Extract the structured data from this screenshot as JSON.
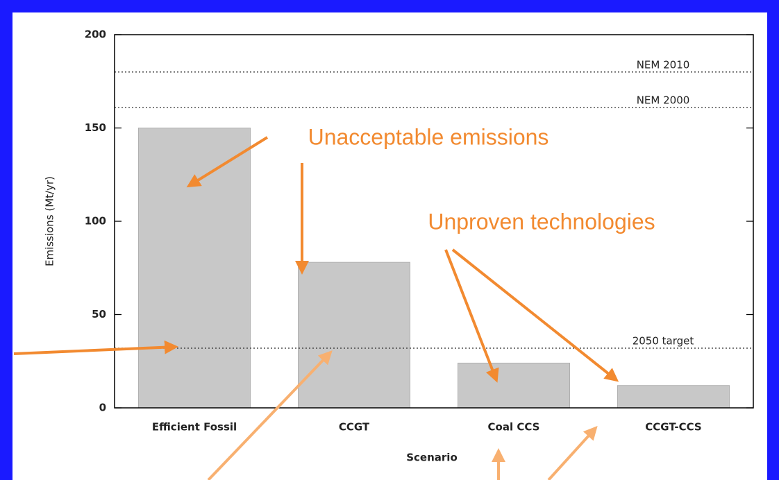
{
  "chart_data": {
    "type": "bar",
    "categories": [
      "Efficient Fossil",
      "CCGT",
      "Coal CCS",
      "CCGT-CCS"
    ],
    "values": [
      150,
      78,
      24,
      12
    ],
    "color": "#c8c8c8",
    "ylim": [
      0,
      200
    ],
    "yticks": [
      0,
      50,
      100,
      150,
      200
    ],
    "ylabel": "Emissions (Mt/yr)",
    "xlabel": "Scenario",
    "reference_lines": [
      {
        "label": "NEM 2010",
        "value": 180
      },
      {
        "label": "NEM 2000",
        "value": 161
      },
      {
        "label": "2050 target",
        "value": 32
      }
    ],
    "annotations": [
      "Unacceptable emissions",
      "Unproven technologies"
    ]
  }
}
